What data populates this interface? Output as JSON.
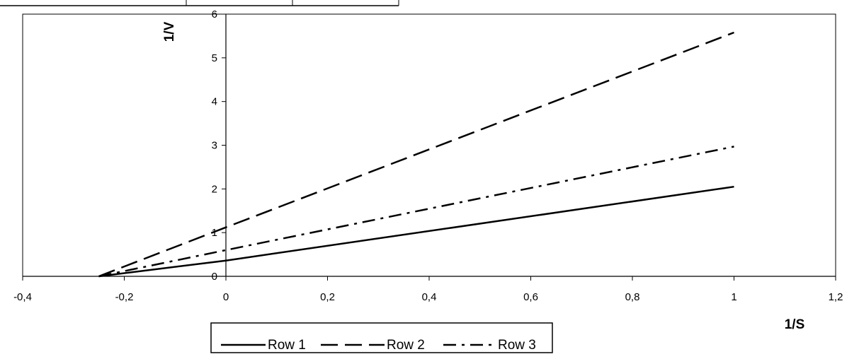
{
  "chart_data": {
    "type": "line",
    "title": "",
    "xlabel": "1/S",
    "ylabel": "1/V",
    "xlim": [
      -0.4,
      1.2
    ],
    "ylim": [
      0,
      6
    ],
    "x_ticks": [
      "-0,4",
      "-0,2",
      "0",
      "0,2",
      "0,4",
      "0,6",
      "0,8",
      "1",
      "1,2"
    ],
    "x_tick_values": [
      -0.4,
      -0.2,
      0,
      0.2,
      0.4,
      0.6,
      0.8,
      1.0,
      1.2
    ],
    "y_ticks": [
      "0",
      "1",
      "2",
      "3",
      "4",
      "5",
      "6"
    ],
    "y_tick_values": [
      0,
      1,
      2,
      3,
      4,
      5,
      6
    ],
    "grid": false,
    "legend_position": "bottom",
    "series": [
      {
        "name": "Row 1",
        "style": "solid",
        "x": [
          -0.25,
          0,
          1
        ],
        "y": [
          0,
          0.36,
          2.05
        ]
      },
      {
        "name": "Row 2",
        "style": "long-dash",
        "x": [
          -0.25,
          0,
          1
        ],
        "y": [
          0,
          1.12,
          5.58
        ]
      },
      {
        "name": "Row 3",
        "style": "dash-dot",
        "x": [
          -0.25,
          0,
          1
        ],
        "y": [
          0,
          0.6,
          2.97
        ]
      }
    ]
  }
}
